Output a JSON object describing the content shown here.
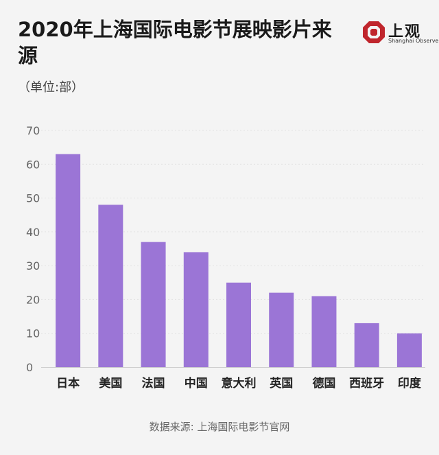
{
  "title": "2020年上海国际电影节展映影片来源",
  "unit_label": "（单位:部）",
  "source": "数据来源: 上海国际电影节官网",
  "logo": {
    "text_cn": "上观",
    "text_en": "Shanghai Observer",
    "color": "#c0262d"
  },
  "bar_color": "#9b75d6",
  "chart_data": {
    "type": "bar",
    "title": "2020年上海国际电影节展映影片来源",
    "ylabel": "（单位:部）",
    "xlabel": "",
    "categories": [
      "日本",
      "美国",
      "法国",
      "中国",
      "意大利",
      "英国",
      "德国",
      "西班牙",
      "印度"
    ],
    "values": [
      63,
      48,
      37,
      34,
      25,
      22,
      21,
      13,
      10
    ],
    "ylim": [
      0,
      70
    ],
    "yticks": [
      0,
      10,
      20,
      30,
      40,
      50,
      60,
      70
    ],
    "grid": true
  }
}
